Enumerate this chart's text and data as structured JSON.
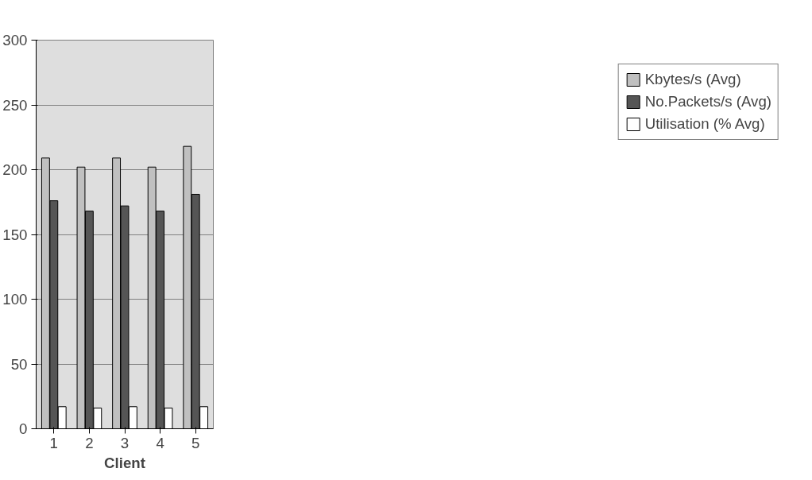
{
  "chart_data": {
    "type": "bar",
    "xlabel": "Client",
    "categories": [
      "1",
      "2",
      "3",
      "4",
      "5"
    ],
    "series": [
      {
        "name": "Kbytes/s (Avg)",
        "color": "#c0c0c0",
        "values": [
          209,
          202,
          209,
          202,
          218
        ]
      },
      {
        "name": "No.Packets/s (Avg)",
        "color": "#555555",
        "values": [
          176,
          168,
          172,
          168,
          181
        ]
      },
      {
        "name": "Utilisation (% Avg)",
        "color": "#ffffff",
        "values": [
          17,
          16,
          17,
          16,
          17
        ]
      }
    ],
    "ylim": [
      0,
      300
    ],
    "yticks": [
      0,
      50,
      100,
      150,
      200,
      250,
      300
    ],
    "grid": "y",
    "legend": "right"
  }
}
